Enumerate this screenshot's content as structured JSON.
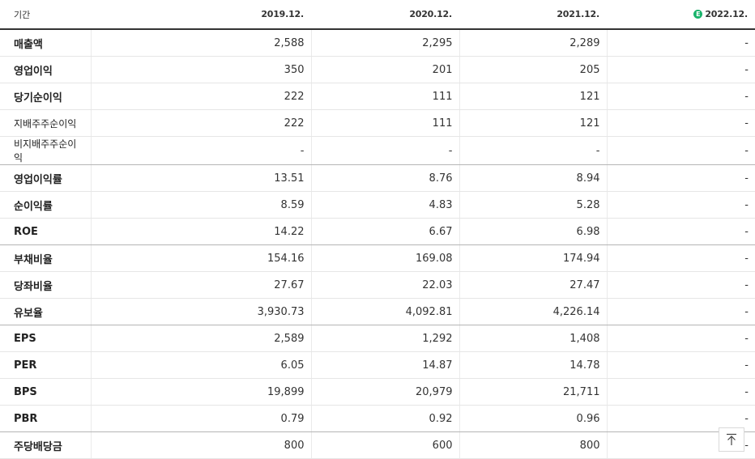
{
  "table": {
    "header": {
      "label": "기간",
      "periods": [
        "2019.12.",
        "2020.12.",
        "2021.12.",
        "2022.12."
      ],
      "estimate_badge": "E"
    },
    "rows": [
      {
        "label": "매출액",
        "values": [
          "2,588",
          "2,295",
          "2,289",
          "-"
        ]
      },
      {
        "label": "영업이익",
        "values": [
          "350",
          "201",
          "205",
          "-"
        ]
      },
      {
        "label": "당기순이익",
        "values": [
          "222",
          "111",
          "121",
          "-"
        ]
      },
      {
        "label": "지배주주순이익",
        "values": [
          "222",
          "111",
          "121",
          "-"
        ]
      },
      {
        "label": "비지배주주순이익",
        "values": [
          "-",
          "-",
          "-",
          "-"
        ]
      },
      {
        "label": "영업이익률",
        "values": [
          "13.51",
          "8.76",
          "8.94",
          "-"
        ]
      },
      {
        "label": "순이익률",
        "values": [
          "8.59",
          "4.83",
          "5.28",
          "-"
        ]
      },
      {
        "label": "ROE",
        "values": [
          "14.22",
          "6.67",
          "6.98",
          "-"
        ]
      },
      {
        "label": "부채비율",
        "values": [
          "154.16",
          "169.08",
          "174.94",
          "-"
        ]
      },
      {
        "label": "당좌비율",
        "values": [
          "27.67",
          "22.03",
          "27.47",
          "-"
        ]
      },
      {
        "label": "유보율",
        "values": [
          "3,930.73",
          "4,092.81",
          "4,226.14",
          "-"
        ]
      },
      {
        "label": "EPS",
        "values": [
          "2,589",
          "1,292",
          "1,408",
          "-"
        ]
      },
      {
        "label": "PER",
        "values": [
          "6.05",
          "14.87",
          "14.78",
          "-"
        ]
      },
      {
        "label": "BPS",
        "values": [
          "19,899",
          "20,979",
          "21,711",
          "-"
        ]
      },
      {
        "label": "PBR",
        "values": [
          "0.79",
          "0.92",
          "0.96",
          "-"
        ]
      },
      {
        "label": "주당배당금",
        "values": [
          "800",
          "600",
          "800",
          "-"
        ]
      }
    ]
  },
  "scroll_top_button": {
    "icon": "arrow-up-to-top-icon"
  },
  "colors": {
    "estimate": "#19b36b",
    "header_rule": "#333333"
  }
}
